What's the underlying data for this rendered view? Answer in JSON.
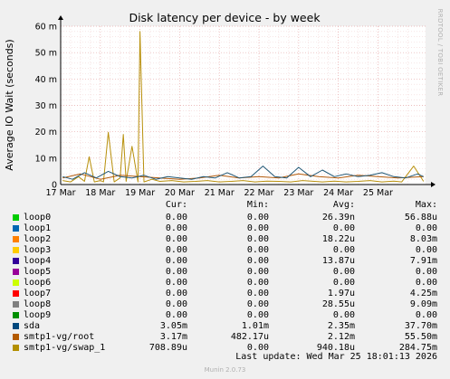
{
  "chart_data": {
    "type": "line",
    "title": "Disk latency per device - by week",
    "ylabel": "Average IO Wait (seconds)",
    "side_label": "RRDTOOL / TOBI OETIKER",
    "ylim": [
      0,
      60
    ],
    "y_ticks": [
      0,
      10,
      20,
      30,
      40,
      50,
      60
    ],
    "y_tick_labels": [
      "0",
      "10 m",
      "20 m",
      "30 m",
      "40 m",
      "50 m",
      "60 m"
    ],
    "x_range_days": [
      0,
      9.2
    ],
    "x_ticks": [
      {
        "day": 0,
        "label": "17 Mar"
      },
      {
        "day": 1,
        "label": "18 Mar"
      },
      {
        "day": 2,
        "label": "19 Mar"
      },
      {
        "day": 3,
        "label": "20 Mar"
      },
      {
        "day": 4,
        "label": "21 Mar"
      },
      {
        "day": 5,
        "label": "22 Mar"
      },
      {
        "day": 6,
        "label": "23 Mar"
      },
      {
        "day": 7,
        "label": "24 Mar"
      },
      {
        "day": 8,
        "label": "25 Mar"
      }
    ],
    "series": [
      {
        "name": "smtp1-vg/swap_1",
        "color": "#b8900c",
        "x": [
          0.05,
          0.25,
          0.45,
          0.6,
          0.72,
          0.85,
          1.0,
          1.08,
          1.2,
          1.35,
          1.5,
          1.58,
          1.65,
          1.8,
          1.95,
          2.0,
          2.1,
          2.3,
          2.5,
          2.8,
          3.1,
          3.4,
          3.7,
          4.0,
          4.3,
          4.6,
          4.9,
          5.2,
          5.5,
          5.8,
          6.1,
          6.4,
          6.6,
          6.9,
          7.2,
          7.5,
          7.8,
          8.1,
          8.4,
          8.6,
          8.9,
          9.15
        ],
        "y": [
          1.5,
          1.0,
          3.0,
          1.2,
          10.5,
          1.0,
          1.5,
          1.0,
          19.8,
          1.0,
          2.5,
          19.0,
          1.2,
          14.5,
          1.0,
          58.0,
          1.0,
          2.0,
          1.2,
          1.5,
          1.0,
          1.2,
          1.5,
          1.0,
          1.2,
          1.5,
          1.0,
          1.3,
          1.2,
          1.0,
          1.5,
          1.2,
          1.0,
          1.3,
          1.0,
          1.2,
          1.5,
          1.0,
          1.3,
          1.0,
          7.0,
          1.2
        ]
      },
      {
        "name": "smtp1-vg/root",
        "color": "#b35a0a",
        "x": [
          0.05,
          0.5,
          1.0,
          1.5,
          2.0,
          2.5,
          3.0,
          3.5,
          4.0,
          4.5,
          5.0,
          5.5,
          6.0,
          6.5,
          7.0,
          7.5,
          8.0,
          8.5,
          9.15
        ],
        "y": [
          2.5,
          4.0,
          2.0,
          3.5,
          3.0,
          2.5,
          2.0,
          2.5,
          3.5,
          2.5,
          3.0,
          2.5,
          4.0,
          3.0,
          2.5,
          3.5,
          3.0,
          2.5,
          3.0
        ]
      },
      {
        "name": "sda",
        "color": "#215775",
        "x": [
          0.05,
          0.3,
          0.6,
          0.9,
          1.2,
          1.5,
          1.8,
          2.1,
          2.4,
          2.7,
          3.0,
          3.3,
          3.6,
          3.9,
          4.2,
          4.5,
          4.8,
          5.1,
          5.4,
          5.7,
          6.0,
          6.3,
          6.6,
          6.9,
          7.2,
          7.5,
          7.8,
          8.1,
          8.4,
          8.7,
          9.0,
          9.15
        ],
        "y": [
          3.0,
          2.0,
          4.5,
          2.5,
          5.0,
          3.0,
          2.5,
          3.5,
          2.0,
          3.0,
          2.5,
          2.0,
          3.0,
          2.5,
          4.5,
          2.5,
          3.0,
          7.0,
          3.0,
          2.5,
          6.5,
          3.0,
          5.5,
          3.0,
          4.0,
          3.0,
          3.5,
          4.5,
          3.0,
          2.5,
          4.0,
          3.0
        ]
      }
    ],
    "legend": {
      "headers": {
        "cur": "Cur:",
        "min": "Min:",
        "avg": "Avg:",
        "max": "Max:"
      },
      "rows": [
        {
          "name": "loop0",
          "color": "#00cc00",
          "cur": "0.00",
          "min": "0.00",
          "avg": "26.39n",
          "max": "56.88u"
        },
        {
          "name": "loop1",
          "color": "#0066b3",
          "cur": "0.00",
          "min": "0.00",
          "avg": "0.00",
          "max": "0.00"
        },
        {
          "name": "loop2",
          "color": "#ff8000",
          "cur": "0.00",
          "min": "0.00",
          "avg": "18.22u",
          "max": "8.03m"
        },
        {
          "name": "loop3",
          "color": "#ffcc00",
          "cur": "0.00",
          "min": "0.00",
          "avg": "0.00",
          "max": "0.00"
        },
        {
          "name": "loop4",
          "color": "#330099",
          "cur": "0.00",
          "min": "0.00",
          "avg": "13.87u",
          "max": "7.91m"
        },
        {
          "name": "loop5",
          "color": "#990099",
          "cur": "0.00",
          "min": "0.00",
          "avg": "0.00",
          "max": "0.00"
        },
        {
          "name": "loop6",
          "color": "#ccff00",
          "cur": "0.00",
          "min": "0.00",
          "avg": "0.00",
          "max": "0.00"
        },
        {
          "name": "loop7",
          "color": "#ff0000",
          "cur": "0.00",
          "min": "0.00",
          "avg": "1.97u",
          "max": "4.25m"
        },
        {
          "name": "loop8",
          "color": "#808080",
          "cur": "0.00",
          "min": "0.00",
          "avg": "28.55u",
          "max": "9.09m"
        },
        {
          "name": "loop9",
          "color": "#008f00",
          "cur": "0.00",
          "min": "0.00",
          "avg": "0.00",
          "max": "0.00"
        },
        {
          "name": "sda",
          "color": "#00487d",
          "cur": "3.05m",
          "min": "1.01m",
          "avg": "2.35m",
          "max": "37.70m"
        },
        {
          "name": "smtp1-vg/root",
          "color": "#b35a00",
          "cur": "3.17m",
          "min": "482.17u",
          "avg": "2.12m",
          "max": "55.50m"
        },
        {
          "name": "smtp1-vg/swap_1",
          "color": "#b38f00",
          "cur": "708.89u",
          "min": "0.00",
          "avg": "940.18u",
          "max": "284.75m"
        }
      ]
    }
  },
  "footer": {
    "last_update": "Last update: Wed Mar 25 18:01:13 2026",
    "version": "Munin 2.0.73"
  }
}
